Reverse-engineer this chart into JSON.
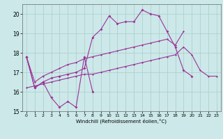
{
  "xlabel": "Windchill (Refroidissement éolien,°C)",
  "background_color": "#cce8e8",
  "grid_color": "#aacccc",
  "line_color": "#993399",
  "x": [
    0,
    1,
    2,
    3,
    4,
    5,
    6,
    7,
    8,
    9,
    10,
    11,
    12,
    13,
    14,
    15,
    16,
    17,
    18,
    19,
    20,
    21,
    22,
    23
  ],
  "series1": [
    17.8,
    16.2,
    16.5,
    15.7,
    15.2,
    15.5,
    15.2,
    17.8,
    16.0,
    null,
    null,
    null,
    null,
    null,
    null,
    null,
    null,
    null,
    null,
    null,
    null,
    null,
    null,
    null
  ],
  "series2": [
    17.8,
    16.2,
    16.5,
    16.7,
    16.8,
    16.9,
    17.0,
    17.2,
    18.8,
    19.2,
    19.9,
    19.5,
    19.6,
    19.6,
    20.2,
    20.0,
    19.9,
    19.1,
    18.3,
    17.1,
    16.8,
    null,
    null,
    null
  ],
  "series3": [
    17.8,
    16.5,
    16.8,
    17.0,
    17.2,
    17.4,
    17.5,
    17.7,
    17.8,
    17.9,
    18.0,
    18.1,
    18.2,
    18.3,
    18.4,
    18.5,
    18.6,
    18.7,
    18.4,
    19.1,
    null,
    null,
    null,
    null
  ],
  "series4": [
    16.2,
    16.3,
    16.4,
    16.5,
    16.6,
    16.7,
    16.8,
    16.9,
    16.9,
    17.0,
    17.1,
    17.2,
    17.3,
    17.4,
    17.5,
    17.6,
    17.7,
    17.8,
    17.9,
    18.3,
    17.9,
    17.1,
    16.8,
    16.8
  ],
  "ylim": [
    15.0,
    20.5
  ],
  "xlim": [
    -0.5,
    23.5
  ],
  "yticks": [
    15,
    16,
    17,
    18,
    19,
    20
  ],
  "xticks": [
    0,
    1,
    2,
    3,
    4,
    5,
    6,
    7,
    8,
    9,
    10,
    11,
    12,
    13,
    14,
    15,
    16,
    17,
    18,
    19,
    20,
    21,
    22,
    23
  ]
}
